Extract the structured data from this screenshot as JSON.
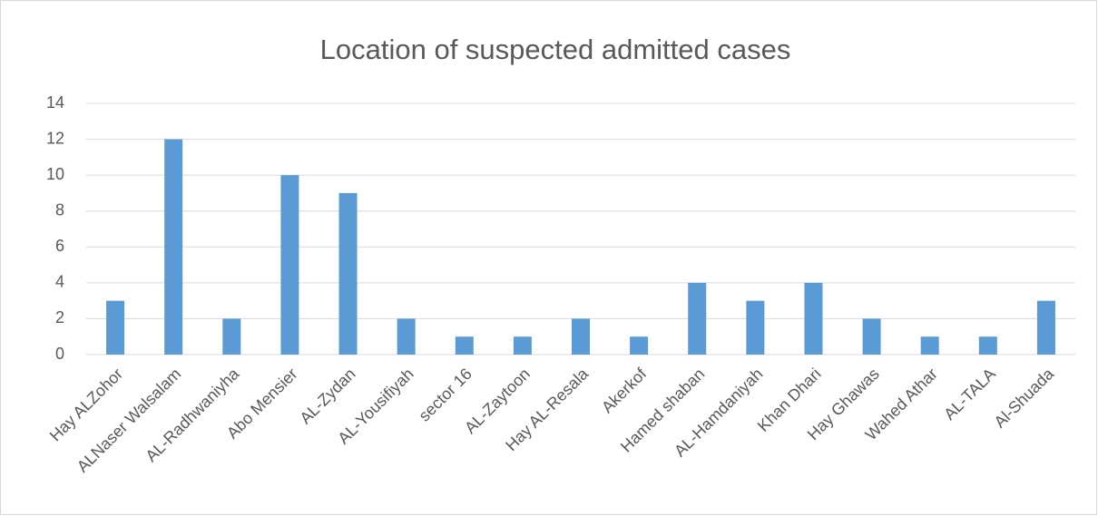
{
  "chart_data": {
    "type": "bar",
    "title": "Location of suspected admitted cases",
    "categories": [
      "Hay ALZohor",
      "ALNaser Walsalam",
      "AL-Radhwaniyha",
      "Abo Mensier",
      "AL-Zydan",
      "AL-Yousifiyah",
      "sector 16",
      "AL-Zaytoon",
      "Hay AL-Resala",
      "Akerkof",
      "Hamed shaban",
      "AL-Hamdaniyah",
      "Khan Dhari",
      "Hay Ghawas",
      "Wahed Athar",
      "AL-TALA",
      "Al-Shuada"
    ],
    "values": [
      3,
      12,
      2,
      10,
      9,
      2,
      1,
      1,
      2,
      1,
      4,
      3,
      4,
      2,
      1,
      1,
      3
    ],
    "color": "#5b9bd5",
    "ylim": [
      0,
      14
    ],
    "yticks": [
      0,
      2,
      4,
      6,
      8,
      10,
      12,
      14
    ],
    "grid": true
  }
}
